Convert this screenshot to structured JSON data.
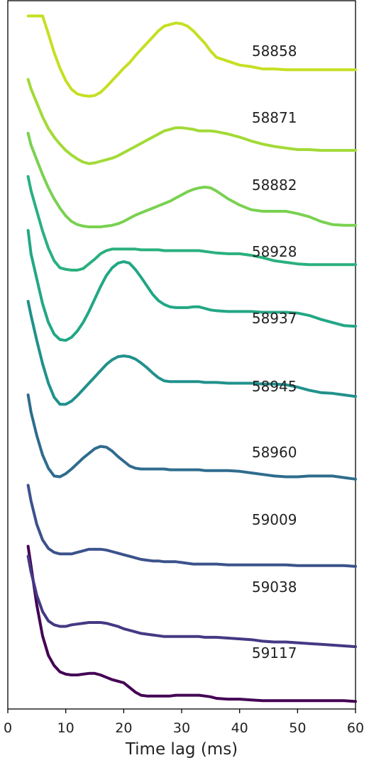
{
  "chart_data": {
    "type": "line",
    "title": "",
    "xlabel": "Time lag (ms)",
    "ylabel": "",
    "xlim": [
      0,
      60
    ],
    "xticks": [
      "0",
      "10",
      "20",
      "30",
      "40",
      "50",
      "60"
    ],
    "grid": false,
    "legend": "none",
    "series": [
      {
        "name": "58858",
        "color": "#c6df22",
        "x": [
          3.5,
          4.0,
          5.0,
          6.0,
          7.0,
          8.0,
          9.0,
          10.0,
          11.0,
          12.0,
          13.0,
          14.0,
          15.0,
          16.0,
          17.0,
          18.0,
          19.0,
          20.0,
          21.0,
          22.0,
          23.0,
          24.0,
          25.0,
          26.0,
          27.0,
          28.0,
          29.0,
          30.0,
          31.0,
          32.0,
          33.0,
          34.0,
          35.0,
          36.0,
          38.0,
          40.0,
          42.0,
          44.0,
          46.0,
          48.0,
          50.0,
          52.0,
          54.0,
          56.0,
          58.0,
          60.0
        ],
        "y": [
          1.05,
          1.05,
          1.05,
          1.05,
          0.82,
          0.58,
          0.38,
          0.22,
          0.11,
          0.05,
          0.03,
          0.02,
          0.03,
          0.07,
          0.14,
          0.22,
          0.3,
          0.38,
          0.45,
          0.54,
          0.62,
          0.7,
          0.78,
          0.86,
          0.92,
          0.94,
          0.96,
          0.95,
          0.92,
          0.86,
          0.78,
          0.7,
          0.6,
          0.52,
          0.47,
          0.42,
          0.4,
          0.37,
          0.37,
          0.36,
          0.36,
          0.36,
          0.36,
          0.36,
          0.36,
          0.36
        ]
      },
      {
        "name": "58871",
        "color": "#a2da37",
        "x": [
          3.5,
          4.0,
          5.0,
          6.0,
          7.0,
          8.0,
          9.0,
          10.0,
          11.0,
          12.0,
          13.0,
          14.0,
          15.0,
          16.0,
          17.0,
          18.0,
          19.0,
          20.0,
          21.0,
          22.0,
          23.0,
          24.0,
          25.0,
          26.0,
          27.0,
          28.0,
          29.0,
          30.0,
          31.0,
          32.0,
          33.0,
          34.0,
          35.0,
          36.0,
          38.0,
          40.0,
          42.0,
          44.0,
          46.0,
          48.0,
          50.0,
          52.0,
          54.0,
          56.0,
          58.0,
          60.0
        ],
        "y": [
          1.1,
          0.98,
          0.8,
          0.62,
          0.47,
          0.36,
          0.27,
          0.19,
          0.13,
          0.08,
          0.04,
          0.02,
          0.03,
          0.05,
          0.07,
          0.09,
          0.12,
          0.16,
          0.2,
          0.24,
          0.28,
          0.32,
          0.36,
          0.4,
          0.44,
          0.46,
          0.48,
          0.48,
          0.47,
          0.46,
          0.44,
          0.44,
          0.44,
          0.43,
          0.4,
          0.36,
          0.31,
          0.27,
          0.24,
          0.22,
          0.2,
          0.2,
          0.19,
          0.19,
          0.19,
          0.19
        ]
      },
      {
        "name": "58882",
        "color": "#7ad151",
        "x": [
          3.5,
          4.0,
          5.0,
          6.0,
          7.0,
          8.0,
          9.0,
          10.0,
          11.0,
          12.0,
          13.0,
          14.0,
          15.0,
          16.0,
          17.0,
          18.0,
          19.0,
          20.0,
          21.0,
          22.0,
          23.0,
          24.0,
          25.0,
          26.0,
          27.0,
          28.0,
          29.0,
          30.0,
          31.0,
          32.0,
          33.0,
          34.0,
          35.0,
          36.0,
          38.0,
          40.0,
          42.0,
          44.0,
          46.0,
          48.0,
          50.0,
          52.0,
          54.0,
          56.0,
          58.0,
          60.0
        ],
        "y": [
          1.2,
          1.05,
          0.86,
          0.67,
          0.5,
          0.36,
          0.24,
          0.14,
          0.07,
          0.03,
          0.01,
          0.0,
          0.0,
          0.0,
          0.01,
          0.02,
          0.04,
          0.07,
          0.11,
          0.15,
          0.18,
          0.21,
          0.24,
          0.27,
          0.3,
          0.33,
          0.37,
          0.41,
          0.45,
          0.48,
          0.5,
          0.51,
          0.5,
          0.46,
          0.36,
          0.28,
          0.22,
          0.2,
          0.2,
          0.2,
          0.17,
          0.13,
          0.07,
          0.03,
          0.02,
          0.02
        ]
      },
      {
        "name": "58928",
        "color": "#2ab07f",
        "x": [
          3.5,
          4.0,
          5.0,
          6.0,
          7.0,
          8.0,
          9.0,
          10.0,
          11.0,
          12.0,
          13.0,
          14.0,
          15.0,
          16.0,
          17.0,
          18.0,
          19.0,
          20.0,
          21.0,
          22.0,
          23.0,
          24.0,
          25.0,
          26.0,
          27.0,
          28.0,
          29.0,
          30.0,
          31.0,
          32.0,
          33.0,
          34.0,
          35.0,
          36.0,
          38.0,
          40.0,
          42.0,
          44.0,
          46.0,
          48.0,
          50.0,
          52.0,
          54.0,
          56.0,
          58.0,
          60.0
        ],
        "y": [
          1.4,
          1.22,
          0.96,
          0.7,
          0.48,
          0.32,
          0.23,
          0.21,
          0.2,
          0.2,
          0.22,
          0.28,
          0.34,
          0.41,
          0.45,
          0.47,
          0.47,
          0.47,
          0.47,
          0.47,
          0.46,
          0.46,
          0.46,
          0.46,
          0.45,
          0.45,
          0.45,
          0.45,
          0.45,
          0.45,
          0.45,
          0.44,
          0.43,
          0.42,
          0.41,
          0.41,
          0.39,
          0.36,
          0.32,
          0.3,
          0.28,
          0.27,
          0.27,
          0.27,
          0.27,
          0.27
        ]
      },
      {
        "name": "58937",
        "color": "#22a785",
        "x": [
          3.5,
          4.0,
          5.0,
          6.0,
          7.0,
          8.0,
          9.0,
          10.0,
          11.0,
          12.0,
          13.0,
          14.0,
          15.0,
          16.0,
          17.0,
          18.0,
          19.0,
          20.0,
          21.0,
          22.0,
          23.0,
          24.0,
          25.0,
          26.0,
          27.0,
          28.0,
          29.0,
          30.0,
          31.0,
          32.0,
          33.0,
          34.0,
          35.0,
          36.0,
          38.0,
          40.0,
          42.0,
          44.0,
          46.0,
          48.0,
          50.0,
          52.0,
          54.0,
          56.0,
          58.0,
          60.0
        ],
        "y": [
          1.5,
          1.2,
          0.88,
          0.56,
          0.32,
          0.17,
          0.1,
          0.09,
          0.13,
          0.21,
          0.32,
          0.46,
          0.62,
          0.78,
          0.92,
          1.02,
          1.08,
          1.1,
          1.08,
          1.0,
          0.9,
          0.79,
          0.68,
          0.6,
          0.55,
          0.52,
          0.51,
          0.51,
          0.51,
          0.52,
          0.52,
          0.5,
          0.48,
          0.47,
          0.46,
          0.46,
          0.46,
          0.45,
          0.45,
          0.45,
          0.44,
          0.41,
          0.36,
          0.32,
          0.28,
          0.27
        ]
      },
      {
        "name": "58945",
        "color": "#21918c",
        "x": [
          3.5,
          4.0,
          5.0,
          6.0,
          7.0,
          8.0,
          9.0,
          10.0,
          11.0,
          12.0,
          13.0,
          14.0,
          15.0,
          16.0,
          17.0,
          18.0,
          19.0,
          20.0,
          21.0,
          22.0,
          23.0,
          24.0,
          25.0,
          26.0,
          27.0,
          28.0,
          29.0,
          30.0,
          31.0,
          32.0,
          33.0,
          34.0,
          35.0,
          36.0,
          38.0,
          40.0,
          42.0,
          44.0,
          46.0,
          48.0,
          50.0,
          52.0,
          54.0,
          56.0,
          58.0,
          60.0
        ],
        "y": [
          1.5,
          1.32,
          1.0,
          0.7,
          0.45,
          0.27,
          0.18,
          0.18,
          0.22,
          0.29,
          0.37,
          0.45,
          0.53,
          0.61,
          0.69,
          0.75,
          0.79,
          0.8,
          0.79,
          0.76,
          0.71,
          0.65,
          0.58,
          0.52,
          0.48,
          0.47,
          0.47,
          0.47,
          0.47,
          0.47,
          0.47,
          0.46,
          0.46,
          0.46,
          0.45,
          0.45,
          0.45,
          0.44,
          0.44,
          0.43,
          0.4,
          0.36,
          0.33,
          0.32,
          0.3,
          0.28
        ]
      },
      {
        "name": "58960",
        "color": "#2f6c8e",
        "x": [
          3.5,
          4.0,
          5.0,
          6.0,
          7.0,
          8.0,
          9.0,
          10.0,
          11.0,
          12.0,
          13.0,
          14.0,
          15.0,
          16.0,
          17.0,
          18.0,
          19.0,
          20.0,
          21.0,
          22.0,
          23.0,
          24.0,
          25.0,
          26.0,
          27.0,
          28.0,
          29.0,
          30.0,
          31.0,
          32.0,
          33.0,
          34.0,
          35.0,
          36.0,
          38.0,
          40.0,
          42.0,
          44.0,
          46.0,
          48.0,
          50.0,
          52.0,
          54.0,
          56.0,
          58.0,
          60.0
        ],
        "y": [
          1.3,
          1.08,
          0.78,
          0.53,
          0.36,
          0.26,
          0.25,
          0.29,
          0.35,
          0.42,
          0.49,
          0.55,
          0.61,
          0.64,
          0.63,
          0.58,
          0.51,
          0.45,
          0.39,
          0.36,
          0.35,
          0.35,
          0.35,
          0.35,
          0.35,
          0.34,
          0.34,
          0.34,
          0.34,
          0.34,
          0.34,
          0.33,
          0.33,
          0.33,
          0.33,
          0.32,
          0.3,
          0.28,
          0.26,
          0.25,
          0.25,
          0.26,
          0.26,
          0.26,
          0.24,
          0.22
        ]
      },
      {
        "name": "59009",
        "color": "#3b528b",
        "x": [
          3.5,
          4.0,
          5.0,
          6.0,
          7.0,
          8.0,
          9.0,
          10.0,
          11.0,
          12.0,
          13.0,
          14.0,
          15.0,
          16.0,
          17.0,
          18.0,
          19.0,
          20.0,
          21.0,
          22.0,
          23.0,
          24.0,
          25.0,
          26.0,
          27.0,
          28.0,
          29.0,
          30.0,
          31.0,
          32.0,
          33.0,
          34.0,
          35.0,
          36.0,
          38.0,
          40.0,
          42.0,
          44.0,
          46.0,
          48.0,
          50.0,
          52.0,
          54.0,
          56.0,
          58.0,
          60.0
        ],
        "y": [
          1.05,
          0.85,
          0.55,
          0.35,
          0.24,
          0.19,
          0.17,
          0.17,
          0.17,
          0.19,
          0.21,
          0.23,
          0.23,
          0.23,
          0.22,
          0.2,
          0.18,
          0.16,
          0.14,
          0.12,
          0.1,
          0.09,
          0.08,
          0.08,
          0.07,
          0.07,
          0.07,
          0.06,
          0.05,
          0.04,
          0.04,
          0.04,
          0.04,
          0.04,
          0.03,
          0.03,
          0.03,
          0.03,
          0.03,
          0.03,
          0.02,
          0.02,
          0.02,
          0.02,
          0.02,
          0.01
        ]
      },
      {
        "name": "59038",
        "color": "#443983",
        "x": [
          3.5,
          4.0,
          5.0,
          6.0,
          7.0,
          8.0,
          9.0,
          10.0,
          11.0,
          12.0,
          13.0,
          14.0,
          15.0,
          16.0,
          17.0,
          18.0,
          19.0,
          20.0,
          21.0,
          22.0,
          23.0,
          24.0,
          25.0,
          26.0,
          27.0,
          28.0,
          29.0,
          30.0,
          31.0,
          32.0,
          33.0,
          34.0,
          35.0,
          36.0,
          38.0,
          40.0,
          42.0,
          44.0,
          46.0,
          48.0,
          50.0,
          52.0,
          54.0,
          56.0,
          58.0,
          60.0
        ],
        "y": [
          1.05,
          0.85,
          0.55,
          0.34,
          0.22,
          0.17,
          0.15,
          0.15,
          0.17,
          0.18,
          0.19,
          0.2,
          0.2,
          0.2,
          0.19,
          0.17,
          0.15,
          0.12,
          0.1,
          0.08,
          0.06,
          0.05,
          0.04,
          0.03,
          0.02,
          0.02,
          0.02,
          0.02,
          0.02,
          0.02,
          0.02,
          0.01,
          0.01,
          0.01,
          0.0,
          -0.01,
          -0.02,
          -0.04,
          -0.05,
          -0.05,
          -0.06,
          -0.07,
          -0.08,
          -0.09,
          -0.1,
          -0.11
        ]
      },
      {
        "name": "59117",
        "color": "#440154",
        "x": [
          3.5,
          4.0,
          5.0,
          6.0,
          7.0,
          8.0,
          9.0,
          10.0,
          11.0,
          12.0,
          13.0,
          14.0,
          15.0,
          16.0,
          17.0,
          18.0,
          19.0,
          20.0,
          21.0,
          22.0,
          23.0,
          24.0,
          25.0,
          26.0,
          27.0,
          28.0,
          29.0,
          30.0,
          31.0,
          32.0,
          33.0,
          34.0,
          35.0,
          36.0,
          38.0,
          40.0,
          42.0,
          44.0,
          46.0,
          48.0,
          50.0,
          52.0,
          54.0,
          56.0,
          58.0,
          60.0
        ],
        "y": [
          1.95,
          1.7,
          1.2,
          0.8,
          0.55,
          0.42,
          0.34,
          0.31,
          0.3,
          0.3,
          0.31,
          0.32,
          0.32,
          0.3,
          0.27,
          0.24,
          0.22,
          0.2,
          0.14,
          0.08,
          0.04,
          0.03,
          0.03,
          0.03,
          0.03,
          0.03,
          0.04,
          0.04,
          0.04,
          0.04,
          0.04,
          0.03,
          0.02,
          0.0,
          -0.01,
          -0.01,
          -0.02,
          -0.03,
          -0.03,
          -0.03,
          -0.03,
          -0.03,
          -0.03,
          -0.03,
          -0.03,
          -0.04
        ]
      }
    ],
    "labels": [
      "58858",
      "58871",
      "58882",
      "58928",
      "58937",
      "58945",
      "58960",
      "59009",
      "59038",
      "59117"
    ],
    "label_x": 46
  }
}
